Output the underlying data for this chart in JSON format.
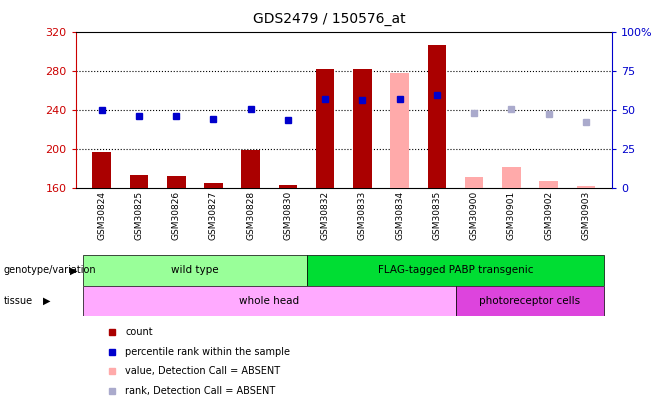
{
  "title": "GDS2479 / 150576_at",
  "samples": [
    "GSM30824",
    "GSM30825",
    "GSM30826",
    "GSM30827",
    "GSM30828",
    "GSM30830",
    "GSM30832",
    "GSM30833",
    "GSM30834",
    "GSM30835",
    "GSM30900",
    "GSM30901",
    "GSM30902",
    "GSM30903"
  ],
  "count_values": [
    197,
    174,
    173,
    165,
    199,
    163,
    282,
    282,
    null,
    307,
    null,
    null,
    null,
    null
  ],
  "count_absent_values": [
    null,
    null,
    null,
    null,
    null,
    null,
    null,
    null,
    278,
    null,
    172,
    182,
    168,
    162
  ],
  "rank_values": [
    240,
    234,
    234,
    231,
    241,
    230,
    252,
    251,
    252,
    256,
    null,
    null,
    null,
    null
  ],
  "rank_absent_values": [
    null,
    null,
    null,
    null,
    null,
    null,
    null,
    null,
    null,
    null,
    237,
    241,
    236,
    228
  ],
  "ylim_left": [
    160,
    320
  ],
  "ylim_right": [
    0,
    100
  ],
  "yticks_left": [
    160,
    200,
    240,
    280,
    320
  ],
  "yticks_right": [
    0,
    25,
    50,
    75,
    100
  ],
  "ytick_right_labels": [
    "0",
    "25",
    "50",
    "75",
    "100%"
  ],
  "bar_color": "#aa0000",
  "bar_absent_color": "#ffaaaa",
  "rank_color": "#0000cc",
  "rank_absent_color": "#aaaacc",
  "genotype_groups": [
    {
      "label": "wild type",
      "start": 0,
      "end": 6,
      "color": "#99ff99"
    },
    {
      "label": "FLAG-tagged PABP transgenic",
      "start": 6,
      "end": 14,
      "color": "#00dd33"
    }
  ],
  "tissue_groups": [
    {
      "label": "whole head",
      "start": 0,
      "end": 10,
      "color": "#ffaaff"
    },
    {
      "label": "photoreceptor cells",
      "start": 10,
      "end": 14,
      "color": "#dd44dd"
    }
  ],
  "legend_items": [
    {
      "label": "count",
      "color": "#aa0000"
    },
    {
      "label": "percentile rank within the sample",
      "color": "#0000cc"
    },
    {
      "label": "value, Detection Call = ABSENT",
      "color": "#ffaaaa"
    },
    {
      "label": "rank, Detection Call = ABSENT",
      "color": "#aaaacc"
    }
  ],
  "bar_width": 0.5,
  "rank_marker_size": 5,
  "axis_color_left": "#cc0000",
  "axis_color_right": "#0000cc",
  "grid_dotted_at": [
    200,
    240,
    280
  ]
}
